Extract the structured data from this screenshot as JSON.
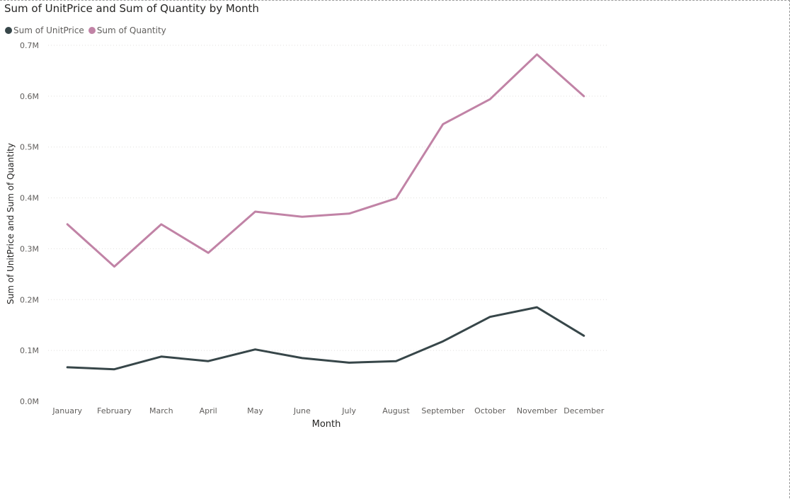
{
  "chart_data": {
    "type": "line",
    "title": "Sum of UnitPrice and Sum of Quantity by Month",
    "xlabel": "Month",
    "ylabel": "Sum of UnitPrice and Sum of Quantity",
    "categories": [
      "January",
      "February",
      "March",
      "April",
      "May",
      "June",
      "July",
      "August",
      "September",
      "October",
      "November",
      "December"
    ],
    "ylim": [
      0,
      0.7
    ],
    "yunit": "M",
    "yticks": [
      "0.0M",
      "0.1M",
      "0.2M",
      "0.3M",
      "0.4M",
      "0.5M",
      "0.6M",
      "0.7M"
    ],
    "grid": true,
    "legend_position": "top-left",
    "series": [
      {
        "name": "Sum of UnitPrice",
        "color": "#374649",
        "values": [
          0.067,
          0.063,
          0.088,
          0.079,
          0.102,
          0.085,
          0.076,
          0.079,
          0.118,
          0.166,
          0.185,
          0.129
        ]
      },
      {
        "name": "Sum of Quantity",
        "color": "#c183a6",
        "values": [
          0.348,
          0.265,
          0.348,
          0.292,
          0.373,
          0.363,
          0.369,
          0.399,
          0.545,
          0.594,
          0.682,
          0.6
        ]
      }
    ]
  }
}
